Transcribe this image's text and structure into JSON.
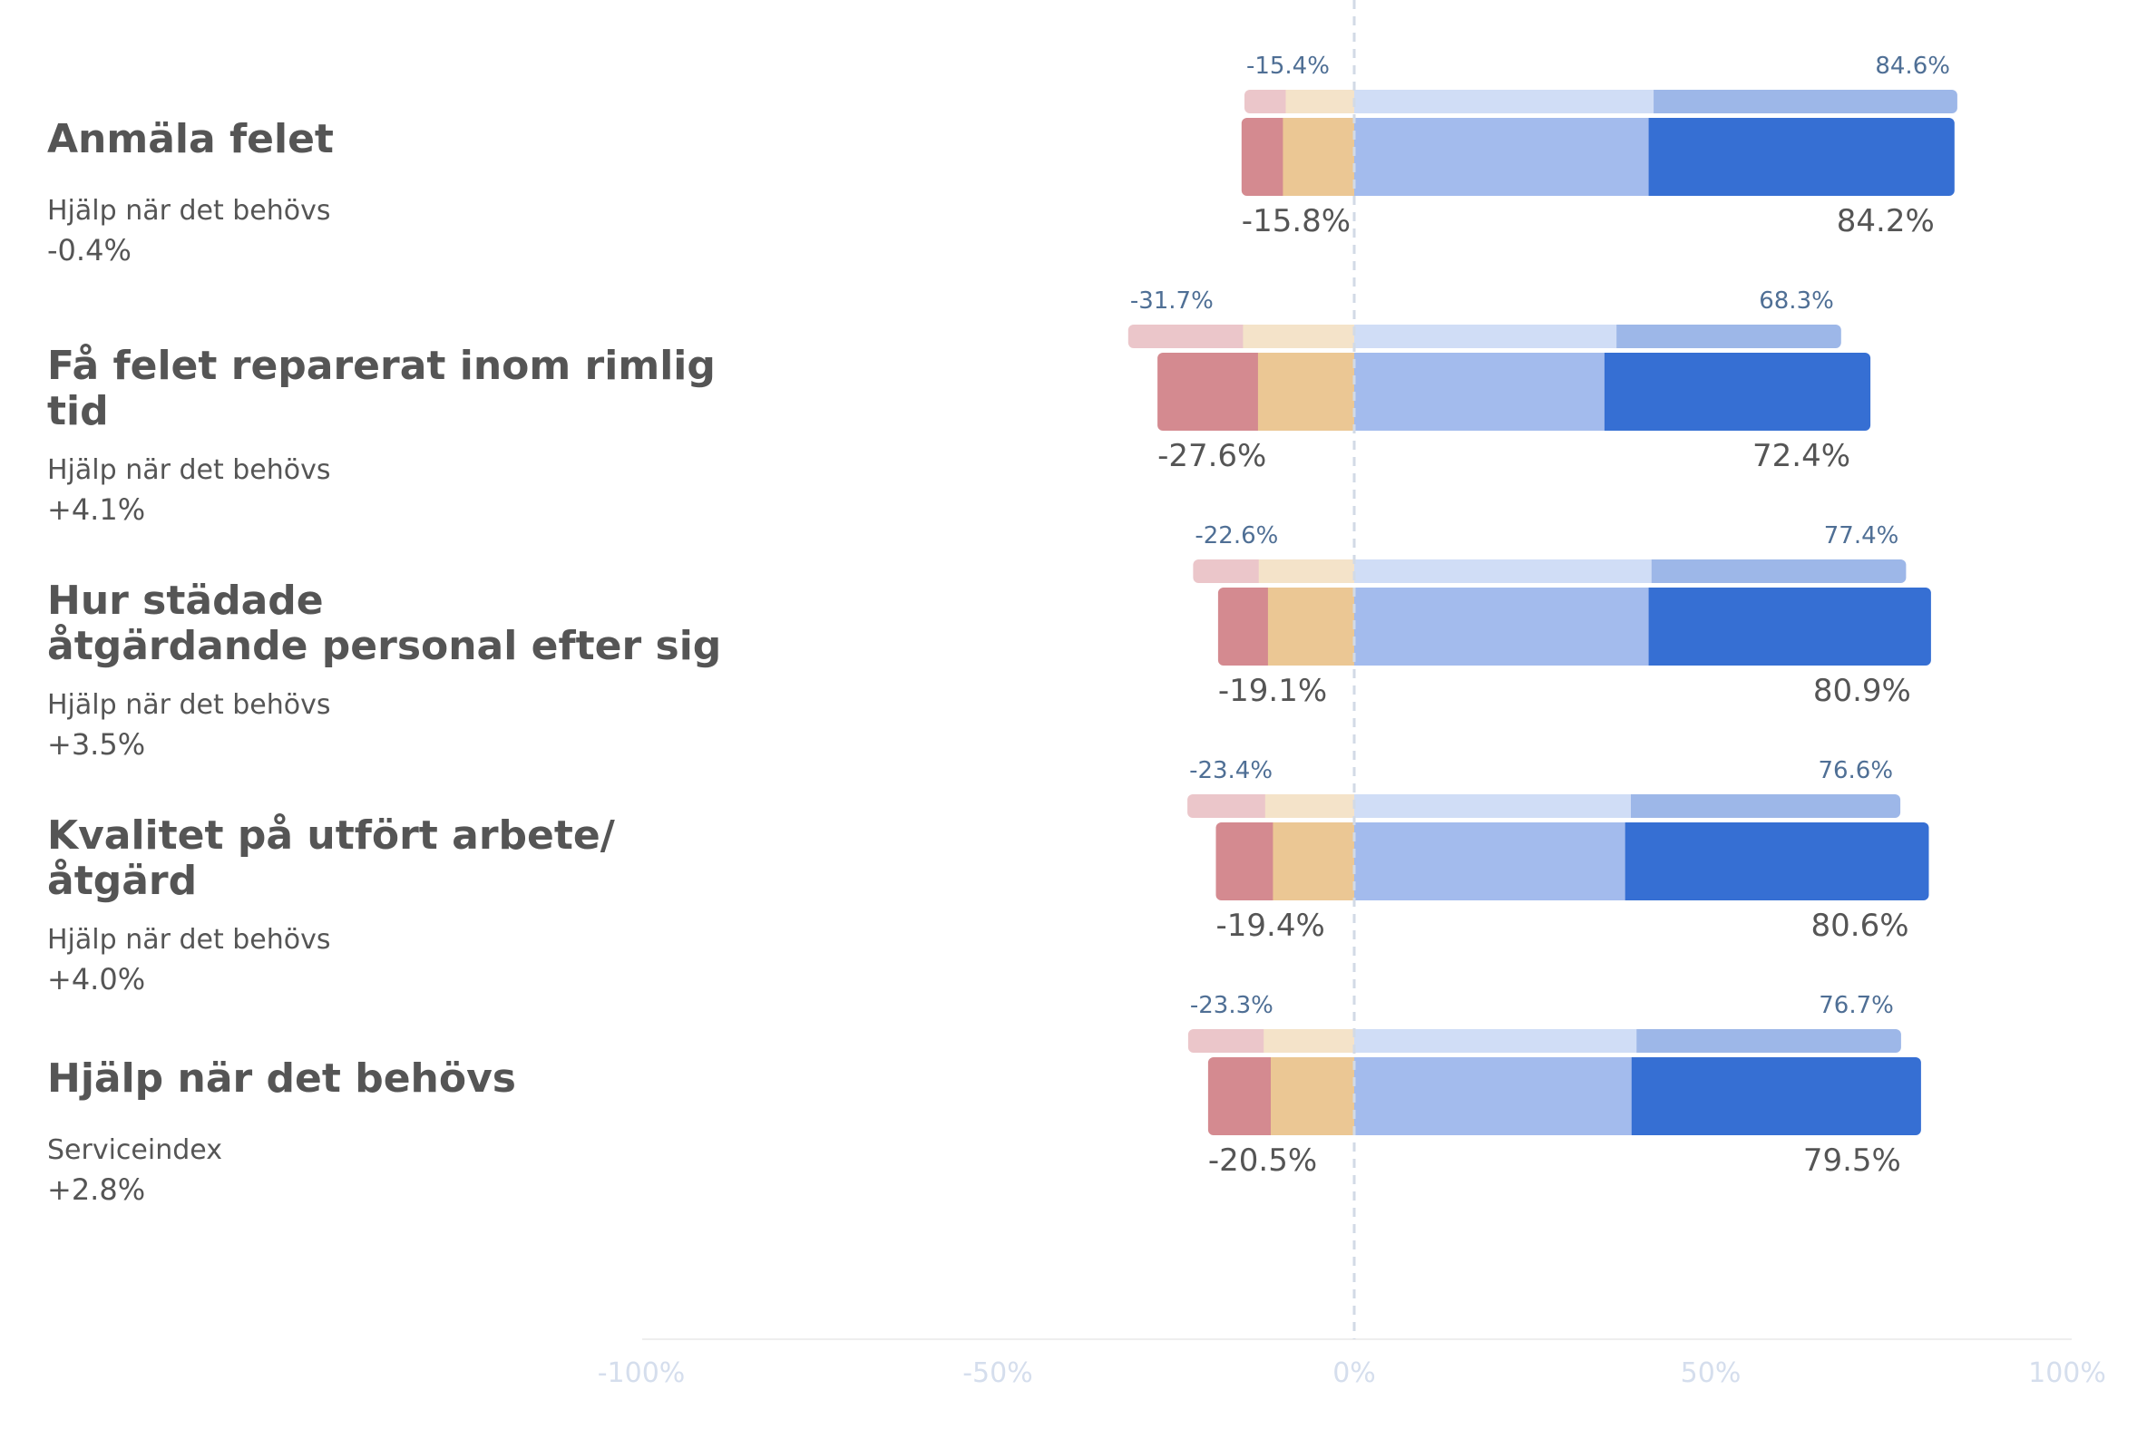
{
  "colors": {
    "very_negative": "#d48a90",
    "negative": "#ebc794",
    "positive": "#a3bbed",
    "very_positive": "#366fd3",
    "prev_very_negative": "#ebc6ca",
    "prev_negative": "#f4e3c9",
    "prev_positive": "#d0ddf6",
    "prev_very_positive": "#9db7e8",
    "label_text": "#555555",
    "prev_label_text": "#4f6f95",
    "axis_text": "#d5deed",
    "zero_line": "#d2dae6",
    "baseline": "#eeeeee"
  },
  "chart_data": {
    "type": "bar",
    "orientation": "horizontal",
    "stacked": "diverging",
    "xlim": [
      -100,
      100
    ],
    "xticks": [
      -100,
      -50,
      0,
      50,
      100
    ],
    "xtick_labels": [
      "-100%",
      "-50%",
      "0%",
      "50%",
      "100%"
    ],
    "grid": false,
    "zero_line": "dashed",
    "categories": [
      {
        "title": "Anmäla felet",
        "subtitle": "Hjälp när det behövs",
        "change": "-0.4%",
        "previous": {
          "very_negative": -5.8,
          "negative": -9.6,
          "positive": 42.0,
          "very_positive": 42.6,
          "neg_label": "-15.4%",
          "pos_label": "84.6%"
        },
        "current": {
          "very_negative": -5.8,
          "negative": -10.0,
          "positive": 41.3,
          "very_positive": 42.9,
          "neg_label": "-15.8%",
          "pos_label": "84.2%"
        }
      },
      {
        "title": "Få felet reparerat inom rimlig tid",
        "subtitle": "Hjälp när det behövs",
        "change": "+4.1%",
        "previous": {
          "very_negative": -16.1,
          "negative": -15.6,
          "positive": 36.8,
          "very_positive": 31.5,
          "neg_label": "-31.7%",
          "pos_label": "68.3%"
        },
        "current": {
          "very_negative": -14.1,
          "negative": -13.5,
          "positive": 35.1,
          "very_positive": 37.3,
          "neg_label": "-27.6%",
          "pos_label": "72.4%"
        }
      },
      {
        "title": "Hur städade åtgärdande personal efter sig",
        "subtitle": "Hjälp när det behövs",
        "change": "+3.5%",
        "previous": {
          "very_negative": -9.2,
          "negative": -13.4,
          "positive": 41.7,
          "very_positive": 35.7,
          "neg_label": "-22.6%",
          "pos_label": "77.4%"
        },
        "current": {
          "very_negative": -7.0,
          "negative": -12.1,
          "positive": 41.3,
          "very_positive": 39.6,
          "neg_label": "-19.1%",
          "pos_label": "80.9%"
        }
      },
      {
        "title": "Kvalitet på utfört arbete/ åtgärd",
        "subtitle": "Hjälp när det behövs",
        "change": "+4.0%",
        "previous": {
          "very_negative": -10.9,
          "negative": -12.5,
          "positive": 38.8,
          "very_positive": 37.8,
          "neg_label": "-23.4%",
          "pos_label": "76.6%"
        },
        "current": {
          "very_negative": -8.0,
          "negative": -11.4,
          "positive": 38.0,
          "very_positive": 42.6,
          "neg_label": "-19.4%",
          "pos_label": "80.6%"
        }
      },
      {
        "title": "Hjälp när det behövs",
        "subtitle": "Serviceindex",
        "change": "+2.8%",
        "previous": {
          "very_negative": -10.6,
          "negative": -12.7,
          "positive": 39.6,
          "very_positive": 37.1,
          "neg_label": "-23.3%",
          "pos_label": "76.7%"
        },
        "current": {
          "very_negative": -8.8,
          "negative": -11.7,
          "positive": 38.9,
          "very_positive": 40.6,
          "neg_label": "-20.5%",
          "pos_label": "79.5%"
        }
      }
    ]
  }
}
